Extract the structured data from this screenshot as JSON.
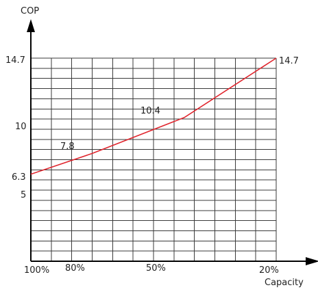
{
  "chart_data": {
    "type": "line",
    "ylabel": "COP",
    "xlabel": "Capacity",
    "x_ticks": [
      "100%",
      "80%",
      "50%",
      "20%"
    ],
    "y_ticks": [
      "14.7",
      "10",
      "6.3",
      "5"
    ],
    "series": [
      {
        "color": "#e0262e",
        "points": [
          {
            "x": "100%",
            "y": 6.3
          },
          {
            "x": "80%",
            "y": 7.8
          },
          {
            "x": "50%",
            "y": 10.4
          },
          {
            "x": "20%",
            "y": 14.7
          }
        ]
      }
    ],
    "data_labels": [
      "7.8",
      "10.4",
      "14.7"
    ],
    "ylim": [
      0,
      14.7
    ],
    "grid": true
  }
}
